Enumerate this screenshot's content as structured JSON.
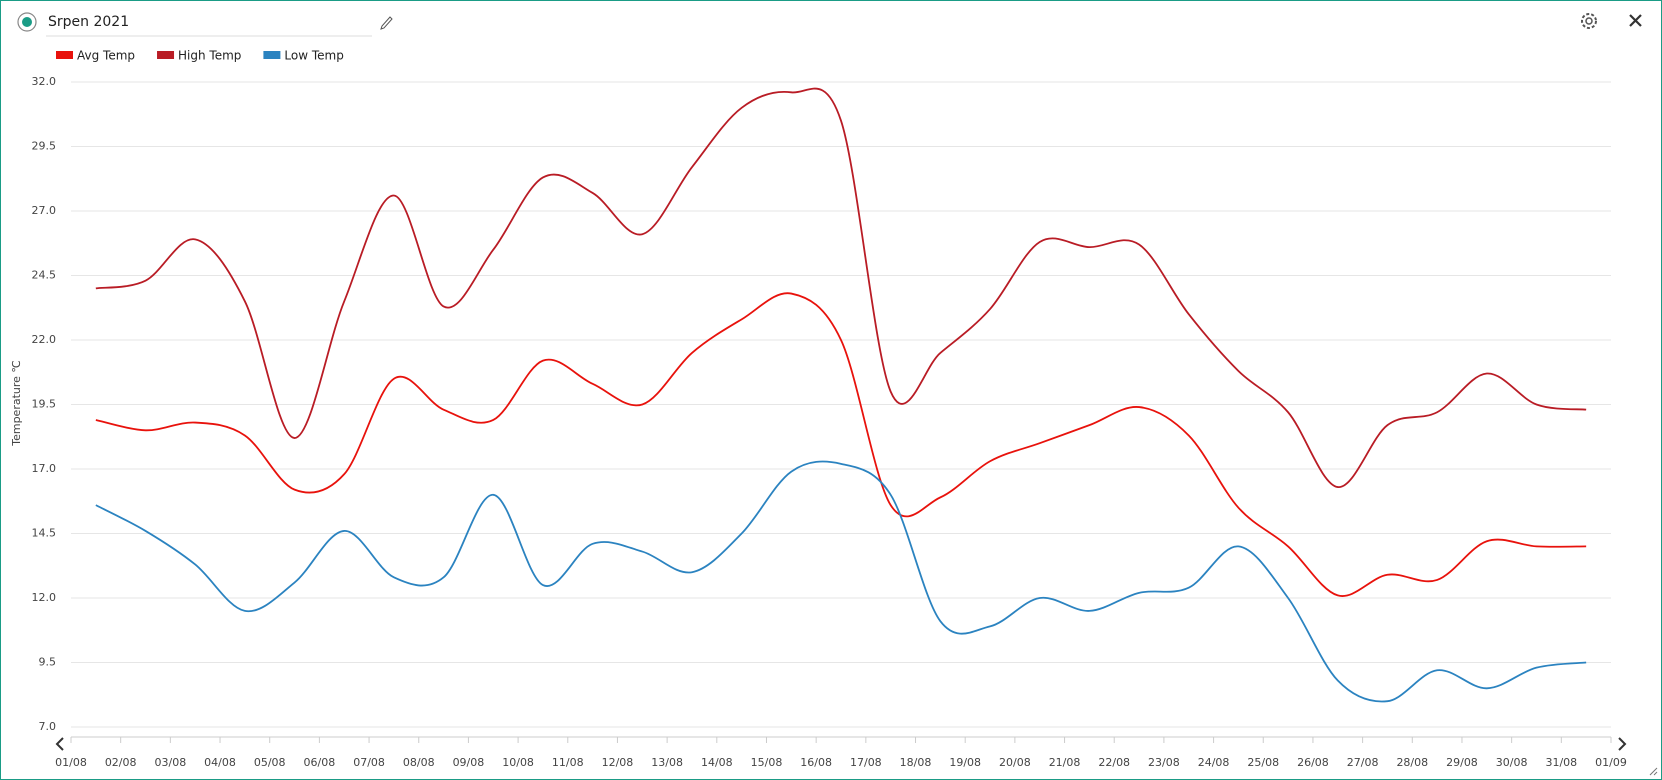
{
  "header": {
    "title": "Srpen 2021"
  },
  "chart_data": {
    "type": "line",
    "y_label": "Temperature ℃",
    "categories": [
      "01/08",
      "02/08",
      "03/08",
      "04/08",
      "05/08",
      "06/08",
      "07/08",
      "08/08",
      "09/08",
      "10/08",
      "11/08",
      "12/08",
      "13/08",
      "14/08",
      "15/08",
      "16/08",
      "17/08",
      "18/08",
      "19/08",
      "20/08",
      "21/08",
      "22/08",
      "23/08",
      "24/08",
      "25/08",
      "26/08",
      "27/08",
      "28/08",
      "29/08",
      "30/08",
      "31/08",
      "01/09"
    ],
    "series": [
      {
        "name": "Avg Temp",
        "color": "#e8120c",
        "values": [
          18.9,
          18.5,
          18.8,
          18.3,
          16.2,
          16.8,
          20.5,
          19.3,
          18.9,
          21.2,
          20.3,
          19.5,
          21.5,
          22.8,
          23.8,
          22.0,
          15.6,
          15.9,
          17.3,
          18.0,
          18.7,
          19.4,
          18.3,
          15.5,
          14.0,
          12.1,
          12.9,
          12.7,
          14.2,
          14.0,
          14.0,
          null
        ]
      },
      {
        "name": "High Temp",
        "color": "#b91c25",
        "values": [
          24.0,
          24.3,
          25.9,
          23.5,
          18.2,
          23.5,
          27.6,
          23.3,
          25.5,
          28.3,
          27.7,
          26.1,
          28.7,
          31.0,
          31.6,
          30.5,
          20.0,
          21.5,
          23.2,
          25.8,
          25.6,
          25.7,
          23.0,
          20.8,
          19.2,
          16.3,
          18.7,
          19.2,
          20.7,
          19.5,
          19.3,
          null
        ]
      },
      {
        "name": "Low Temp",
        "color": "#2b83c0",
        "values": [
          15.6,
          14.6,
          13.3,
          11.5,
          12.6,
          14.6,
          12.8,
          12.8,
          16.0,
          12.5,
          14.1,
          13.8,
          13.0,
          14.5,
          16.9,
          17.2,
          16.0,
          11.1,
          10.9,
          12.0,
          11.5,
          12.2,
          12.4,
          14.0,
          12.0,
          8.8,
          8.0,
          9.2,
          8.5,
          9.3,
          9.5,
          null
        ]
      }
    ],
    "ylim": [
      7,
      32
    ],
    "yticks": [
      {
        "value": 7,
        "label": "7.0"
      },
      9.5,
      {
        "value": 12,
        "label": "12.0"
      },
      14.5,
      {
        "value": 17,
        "label": "17.0"
      },
      19.5,
      {
        "value": 22,
        "label": "22.0"
      },
      24.5,
      {
        "value": 27,
        "label": "27.0"
      },
      29.5,
      {
        "value": 32,
        "label": "32.0"
      }
    ],
    "grid": true,
    "legend": "top-left",
    "smooth": true
  }
}
